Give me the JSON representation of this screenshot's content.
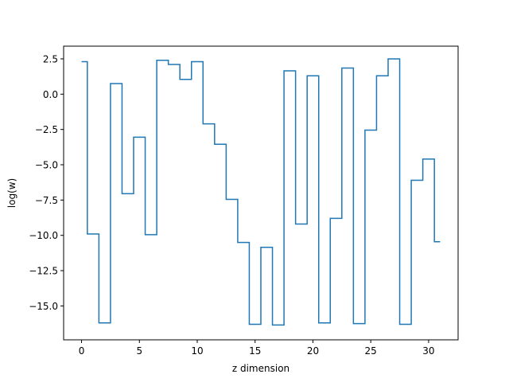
{
  "chart_data": {
    "type": "line",
    "drawstyle": "steps-mid",
    "xlabel": "z dimension",
    "ylabel": "log(w)",
    "xlim": [
      -1.55,
      32.55
    ],
    "ylim": [
      -17.4,
      3.4
    ],
    "xticks": [
      0,
      5,
      10,
      15,
      20,
      25,
      30
    ],
    "xtick_labels": [
      "0",
      "5",
      "10",
      "15",
      "20",
      "25",
      "30"
    ],
    "yticks": [
      2.5,
      0.0,
      -2.5,
      -5.0,
      -7.5,
      -10.0,
      -12.5,
      -15.0
    ],
    "ytick_labels": [
      "2.5",
      "0.0",
      "−2.5",
      "−5.0",
      "−7.5",
      "−10.0",
      "−12.5",
      "−15.0"
    ],
    "grid": false,
    "color": "#1f77b4",
    "series": [
      {
        "x": [
          0,
          1,
          2,
          3,
          4,
          5,
          6,
          7,
          8,
          9,
          10,
          11,
          12,
          13,
          14,
          15,
          16,
          17,
          18,
          19,
          20,
          21,
          22,
          23,
          24,
          25,
          26,
          27,
          28,
          29,
          30,
          31
        ],
        "values": [
          2.3,
          -9.9,
          -16.2,
          0.75,
          -7.05,
          -3.05,
          -9.95,
          2.4,
          2.1,
          1.05,
          2.3,
          -2.1,
          -3.55,
          -7.45,
          -10.5,
          -16.3,
          -10.85,
          -16.35,
          1.65,
          -9.2,
          1.3,
          -16.2,
          -8.8,
          1.85,
          -16.25,
          -2.55,
          1.3,
          2.5,
          -16.3,
          -6.1,
          -4.6,
          -10.45
        ]
      }
    ]
  }
}
